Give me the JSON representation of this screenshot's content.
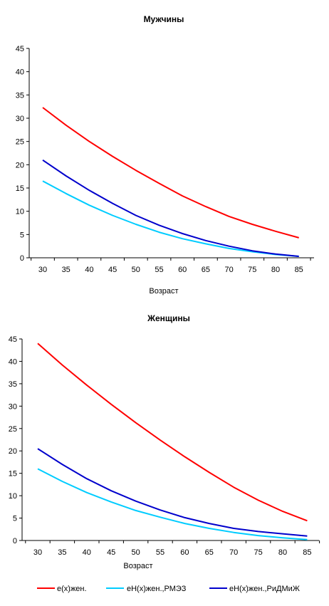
{
  "chart_data": [
    {
      "type": "line",
      "title": "Мужчины",
      "xlabel": "Возраст",
      "ylabel": "",
      "ylim": [
        0,
        45
      ],
      "yticks": [
        0,
        5,
        10,
        15,
        20,
        25,
        30,
        35,
        40,
        45
      ],
      "x": [
        30,
        35,
        40,
        45,
        50,
        55,
        60,
        65,
        70,
        75,
        80,
        85
      ],
      "grid": false,
      "series": [
        {
          "name": "e(x)жен.",
          "color": "#ff0000",
          "values": [
            32.3,
            28.5,
            25.0,
            21.8,
            18.8,
            16.0,
            13.3,
            11.0,
            8.9,
            7.2,
            5.7,
            4.3
          ]
        },
        {
          "name": "eH(x)жен.,РМЭЗ",
          "color": "#00ccff",
          "values": [
            16.5,
            13.8,
            11.3,
            9.1,
            7.2,
            5.5,
            4.1,
            3.0,
            2.0,
            1.3,
            0.7,
            0.3
          ]
        },
        {
          "name": "eH(x)жен.,РиДМиЖ",
          "color": "#0000cc",
          "values": [
            21.0,
            17.6,
            14.5,
            11.7,
            9.1,
            7.0,
            5.2,
            3.7,
            2.5,
            1.5,
            0.8,
            0.3
          ]
        }
      ]
    },
    {
      "type": "line",
      "title": "Женщины",
      "xlabel": "Возраст",
      "ylabel": "",
      "ylim": [
        0,
        45
      ],
      "yticks": [
        0,
        5,
        10,
        15,
        20,
        25,
        30,
        35,
        40,
        45
      ],
      "x": [
        30,
        35,
        40,
        45,
        50,
        55,
        60,
        65,
        70,
        75,
        80,
        85
      ],
      "grid": false,
      "series": [
        {
          "name": "e(x)жен.",
          "color": "#ff0000",
          "values": [
            44.0,
            39.2,
            34.7,
            30.4,
            26.3,
            22.4,
            18.7,
            15.2,
            11.9,
            9.0,
            6.5,
            4.4
          ]
        },
        {
          "name": "eH(x)жен.,РМЭЗ",
          "color": "#00ccff",
          "values": [
            16.0,
            13.2,
            10.7,
            8.6,
            6.7,
            5.2,
            3.8,
            2.7,
            1.8,
            1.1,
            0.6,
            0.2
          ]
        },
        {
          "name": "eH(x)жен.,РиДМиЖ",
          "color": "#0000cc",
          "values": [
            20.5,
            17.0,
            13.8,
            11.1,
            8.8,
            6.8,
            5.1,
            3.8,
            2.7,
            2.0,
            1.5,
            1.0
          ]
        }
      ]
    }
  ],
  "legend": {
    "placement": "bottom",
    "items": [
      {
        "label": "e(x)жен.",
        "color": "#ff0000"
      },
      {
        "label": "eH(x)жен.,РМЭЗ",
        "color": "#00ccff"
      },
      {
        "label": "eH(x)жен.,РиДМиЖ",
        "color": "#0000cc"
      }
    ]
  }
}
